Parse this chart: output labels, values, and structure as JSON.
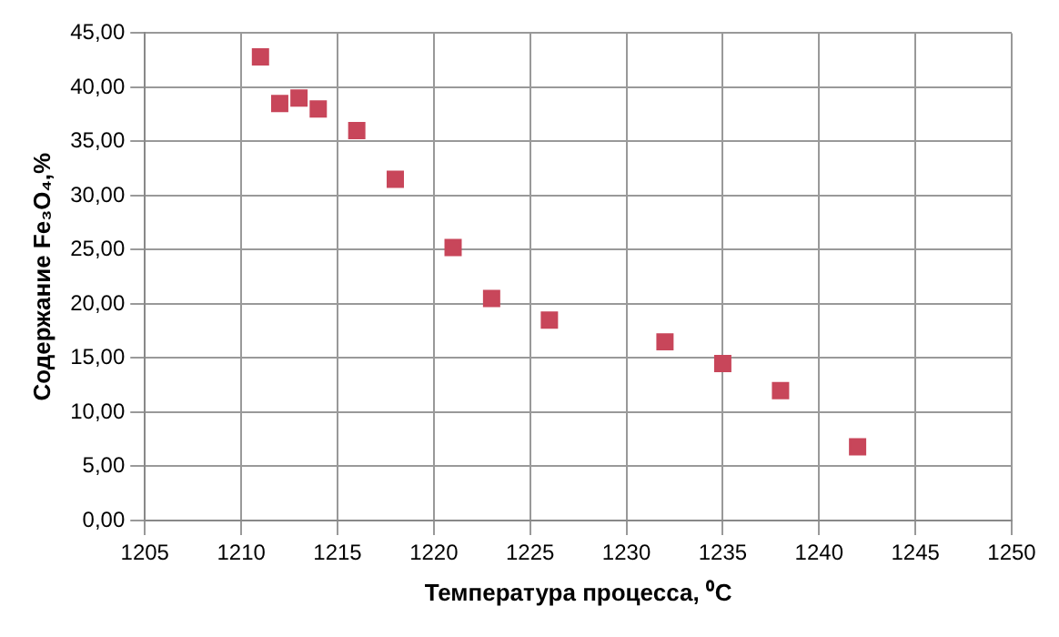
{
  "chart_data": {
    "type": "scatter",
    "xlabel": "Температура процесса, ⁰C",
    "ylabel": "Содержание Fe₃O₄,%",
    "x": [
      1211,
      1212,
      1213,
      1214,
      1216,
      1218,
      1221,
      1223,
      1226,
      1232,
      1235,
      1238,
      1242
    ],
    "series": [
      {
        "color": "#c8465a",
        "values": [
          42.8,
          38.5,
          39,
          38,
          36,
          31.5,
          25.2,
          20.5,
          18.5,
          16.5,
          14.5,
          12,
          6.8
        ]
      }
    ],
    "xlim": [
      1205,
      1250
    ],
    "xticks": [
      1205,
      1210,
      1215,
      1220,
      1225,
      1230,
      1235,
      1240,
      1245,
      1250
    ],
    "ylim": [
      0,
      45
    ],
    "yticks": [
      {
        "value": 0,
        "label": "0,00"
      },
      {
        "value": 5,
        "label": "5,00"
      },
      {
        "value": 10,
        "label": "10,00"
      },
      {
        "value": 15,
        "label": "15,00"
      },
      {
        "value": 20,
        "label": "20,00"
      },
      {
        "value": 25,
        "label": "25,00"
      },
      {
        "value": 30,
        "label": "30,00"
      },
      {
        "value": 35,
        "label": "35,00"
      },
      {
        "value": 40,
        "label": "40,00"
      },
      {
        "value": 45,
        "label": "45,00"
      }
    ],
    "grid": true,
    "legend": false,
    "marker": "square"
  }
}
